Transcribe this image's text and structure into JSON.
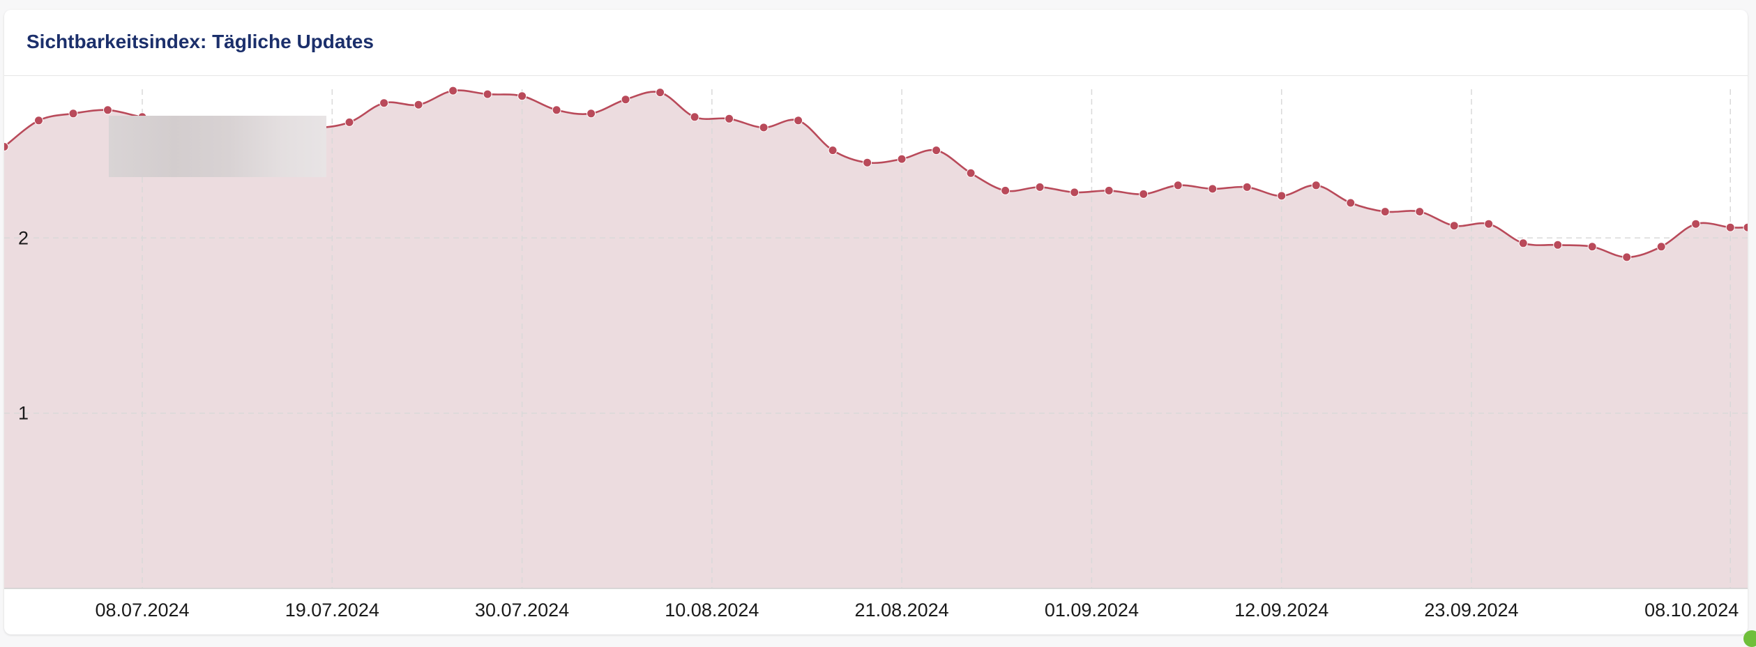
{
  "card": {
    "title": "Sichtbarkeitsindex: Tägliche Updates"
  },
  "colors": {
    "line": "#b94a5a",
    "area": "#ecdcdf",
    "grid": "#d9d9d9",
    "title": "#1b2f6b",
    "status": "#6fbf3a"
  },
  "chart_data": {
    "type": "area",
    "title": "Sichtbarkeitsindex: Tägliche Updates",
    "xlabel": "",
    "ylabel": "",
    "grid": true,
    "legend": "none",
    "y_ticks": [
      1,
      2
    ],
    "ylim": [
      0,
      2.92
    ],
    "x_tick_labels": [
      "08.07.2024",
      "19.07.2024",
      "30.07.2024",
      "10.08.2024",
      "21.08.2024",
      "01.09.2024",
      "12.09.2024",
      "23.09.2024",
      "08.10.2024"
    ],
    "x_tick_dates": [
      "2024-07-08",
      "2024-07-19",
      "2024-07-30",
      "2024-08-10",
      "2024-08-21",
      "2024-09-01",
      "2024-09-12",
      "2024-09-23",
      "2024-10-08"
    ],
    "x_range": [
      "2024-06-30",
      "2024-10-09"
    ],
    "series": [
      {
        "x": [
          "2024-06-30",
          "2024-07-02",
          "2024-07-04",
          "2024-07-06",
          "2024-07-08",
          "2024-07-10",
          "2024-07-12",
          "2024-07-14",
          "2024-07-16",
          "2024-07-18",
          "2024-07-20",
          "2024-07-22",
          "2024-07-24",
          "2024-07-26",
          "2024-07-28",
          "2024-07-30",
          "2024-08-01",
          "2024-08-03",
          "2024-08-05",
          "2024-08-07",
          "2024-08-09",
          "2024-08-11",
          "2024-08-13",
          "2024-08-15",
          "2024-08-17",
          "2024-08-19",
          "2024-08-21",
          "2024-08-23",
          "2024-08-25",
          "2024-08-27",
          "2024-08-29",
          "2024-08-31",
          "2024-09-02",
          "2024-09-04",
          "2024-09-06",
          "2024-09-08",
          "2024-09-10",
          "2024-09-12",
          "2024-09-14",
          "2024-09-16",
          "2024-09-18",
          "2024-09-20",
          "2024-09-22",
          "2024-09-24",
          "2024-09-26",
          "2024-09-28",
          "2024-09-30",
          "2024-10-02",
          "2024-10-04",
          "2024-10-06",
          "2024-10-08",
          "2024-10-09"
        ],
        "values": [
          2.52,
          2.67,
          2.71,
          2.73,
          2.69,
          2.67,
          2.65,
          2.65,
          2.67,
          2.63,
          2.66,
          2.77,
          2.76,
          2.84,
          2.82,
          2.81,
          2.73,
          2.71,
          2.79,
          2.83,
          2.69,
          2.68,
          2.63,
          2.67,
          2.5,
          2.43,
          2.45,
          2.5,
          2.37,
          2.27,
          2.29,
          2.26,
          2.27,
          2.25,
          2.3,
          2.28,
          2.29,
          2.24,
          2.3,
          2.2,
          2.15,
          2.15,
          2.07,
          2.08,
          1.97,
          1.96,
          1.95,
          1.89,
          1.95,
          2.08,
          2.06,
          2.06
        ]
      }
    ]
  }
}
